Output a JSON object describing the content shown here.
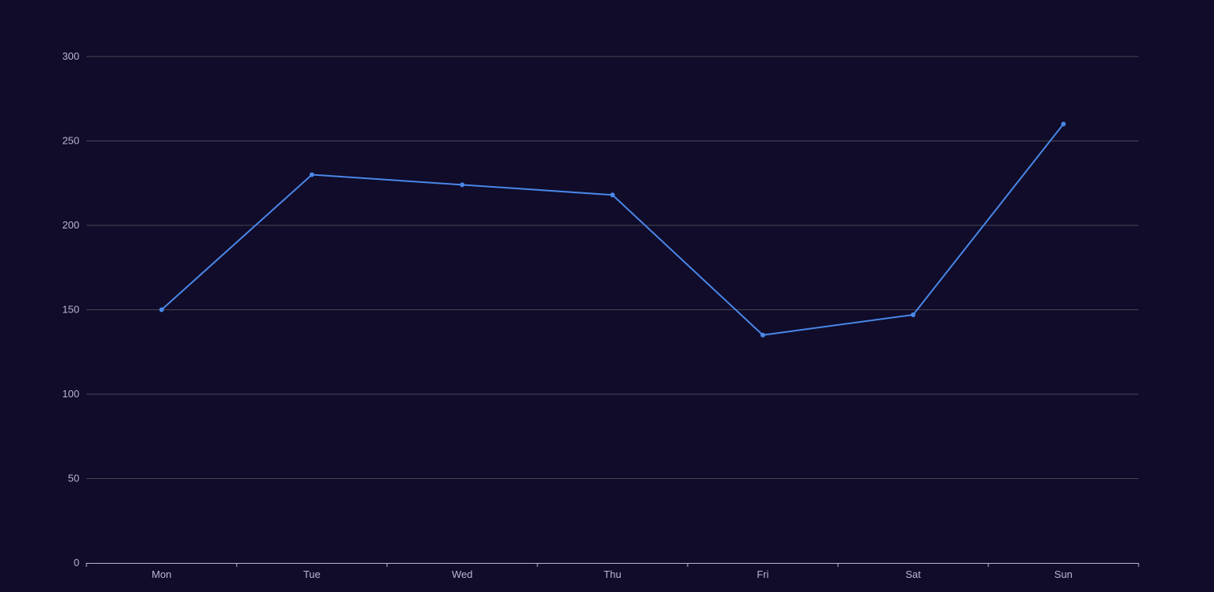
{
  "chart_data": {
    "type": "line",
    "title": "",
    "xlabel": "",
    "ylabel": "",
    "categories": [
      "Mon",
      "Tue",
      "Wed",
      "Thu",
      "Fri",
      "Sat",
      "Sun"
    ],
    "series": [
      {
        "values": [
          150,
          230,
          224,
          218,
          135,
          147,
          260
        ]
      }
    ],
    "ylim": [
      0,
      300
    ],
    "yticks": [
      "0",
      "50",
      "100",
      "150",
      "200",
      "250",
      "300"
    ],
    "grid": true,
    "legend": "none",
    "colors": {
      "background": "#100c2a",
      "line": "#4a87e8",
      "grid": "#484753",
      "axis": "#b9b8ce",
      "label": "#b9b8ce"
    }
  }
}
